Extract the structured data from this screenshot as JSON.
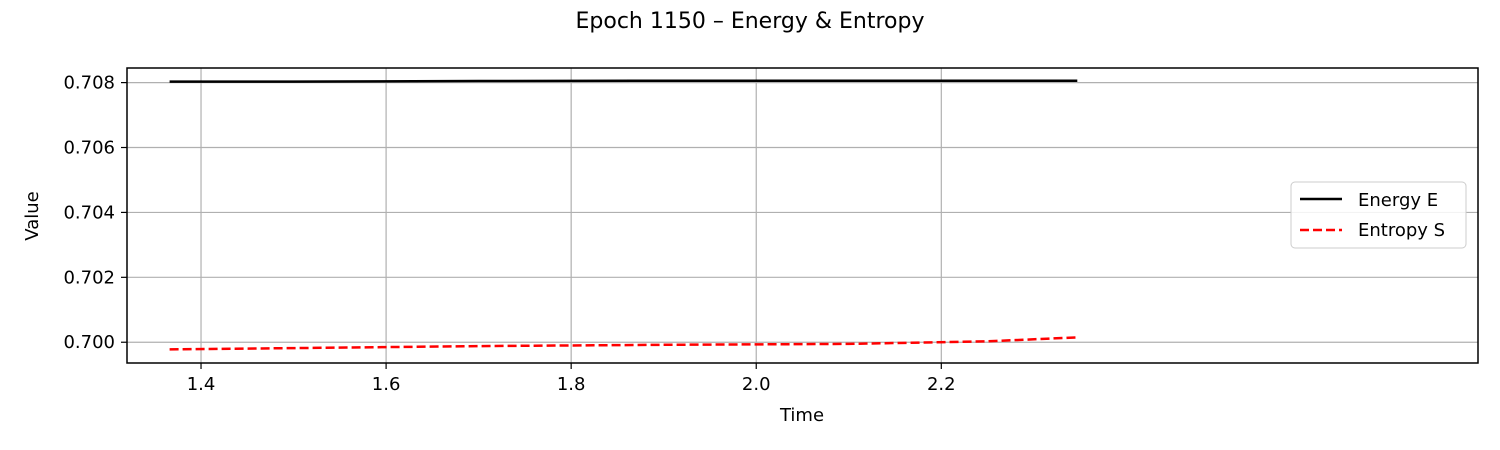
{
  "chart_data": {
    "type": "line",
    "title": "Epoch 1150 – Energy & Entropy",
    "xlabel": "Time",
    "ylabel": "Value",
    "xlim": [
      1.32,
      2.78
    ],
    "ylim": [
      0.69936,
      0.70845
    ],
    "xticks": [
      1.4,
      1.6,
      1.8,
      2.0,
      2.2
    ],
    "xtick_labels": [
      "1.4",
      "1.6",
      "1.8",
      "2.0",
      "2.2"
    ],
    "yticks": [
      0.7,
      0.702,
      0.704,
      0.706,
      0.708
    ],
    "ytick_labels": [
      "0.700",
      "0.702",
      "0.704",
      "0.706",
      "0.708"
    ],
    "grid": true,
    "legend_position": "center-right",
    "series": [
      {
        "name": "Energy E",
        "color": "#000000",
        "dash": "solid",
        "x": [
          1.366,
          1.5,
          1.7,
          1.9,
          2.1,
          2.3,
          2.347
        ],
        "y": [
          0.70803,
          0.70803,
          0.70805,
          0.70806,
          0.70806,
          0.70806,
          0.70806
        ]
      },
      {
        "name": "Entropy S",
        "color": "#ff0000",
        "dash": "dashed",
        "x": [
          1.366,
          1.5,
          1.7,
          1.9,
          2.1,
          2.25,
          2.347
        ],
        "y": [
          0.69978,
          0.69982,
          0.69988,
          0.69992,
          0.69995,
          0.70003,
          0.70015
        ]
      }
    ]
  }
}
